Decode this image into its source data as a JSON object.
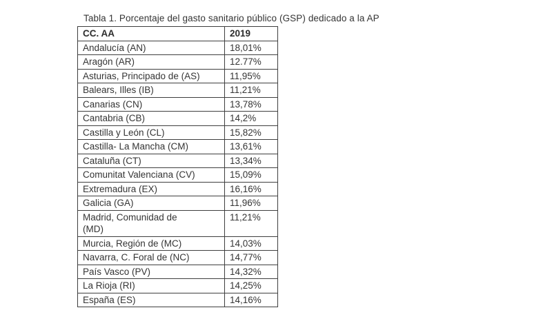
{
  "title": "Tabla 1. Porcentaje del gasto sanitario público (GSP) dedicado a la AP",
  "table": {
    "headers": [
      "CC. AA",
      "2019"
    ],
    "rows": [
      {
        "region": "Andalucía (AN)",
        "value": "18,01%"
      },
      {
        "region": "Aragón (AR)",
        "value": "12.77%"
      },
      {
        "region": "Asturias, Principado de (AS)",
        "value": "11,95%"
      },
      {
        "region": "Balears, Illes (IB)",
        "value": "11,21%"
      },
      {
        "region": "Canarias (CN)",
        "value": "13,78%"
      },
      {
        "region": "Cantabria (CB)",
        "value": "14,2%"
      },
      {
        "region": "Castilla y León (CL)",
        "value": "15,82%"
      },
      {
        "region": "Castilla- La Mancha (CM)",
        "value": "13,61%"
      },
      {
        "region": "Cataluña (CT)",
        "value": "13,34%"
      },
      {
        "region": "Comunitat Valenciana (CV)",
        "value": "15,09%"
      },
      {
        "region": "Extremadura (EX)",
        "value": "16,16%"
      },
      {
        "region": "Galicia (GA)",
        "value": "11,96%"
      },
      {
        "region": "Madrid, Comunidad de\n(MD)",
        "value": "11,21%"
      },
      {
        "region": "Murcia, Región de (MC)",
        "value": "14,03%"
      },
      {
        "region": "Navarra, C. Foral de (NC)",
        "value": "14,77%"
      },
      {
        "region": "País Vasco (PV)",
        "value": "14,32%"
      },
      {
        "region": "La Rioja (RI)",
        "value": "14,25%"
      },
      {
        "region": "España (ES)",
        "value": "14,16%"
      }
    ]
  },
  "colors": {
    "background": "#ffffff",
    "text": "#343434",
    "border": "#3d3d3d"
  }
}
